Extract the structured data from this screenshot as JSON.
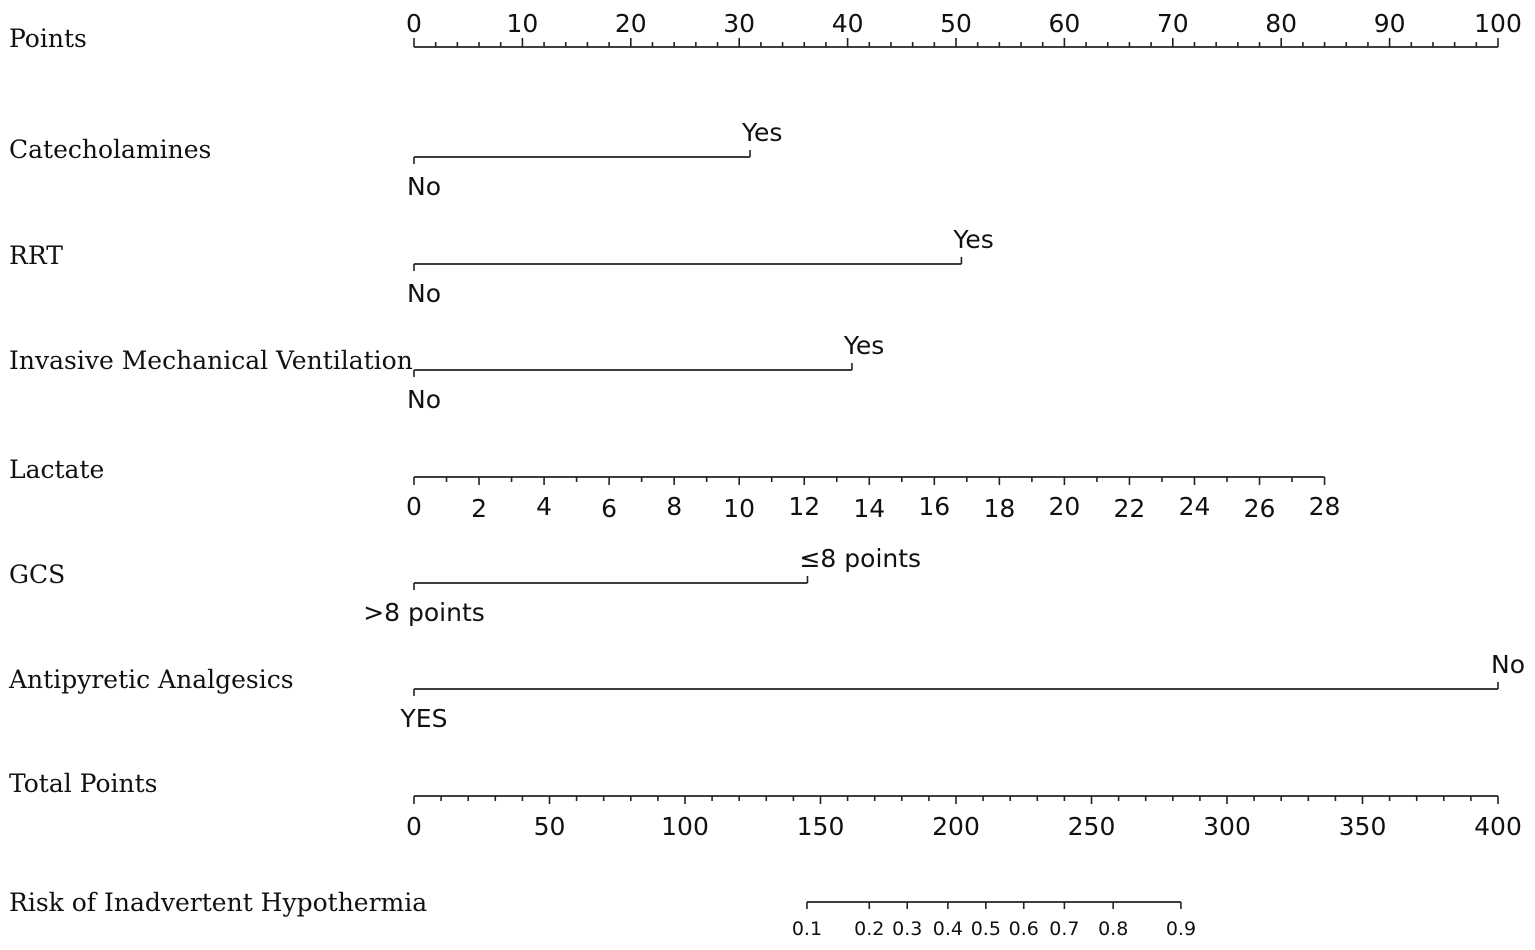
{
  "chart_data": {
    "type": "nomogram",
    "rows": [
      {
        "label": "Points",
        "kind": "scale",
        "min": 0,
        "max": 100,
        "major_ticks": [
          0,
          10,
          20,
          30,
          40,
          50,
          60,
          70,
          80,
          90,
          100
        ],
        "minor_step": 2,
        "tick_labels": [
          "0",
          "10",
          "20",
          "30",
          "40",
          "50",
          "60",
          "70",
          "80",
          "90",
          "100"
        ]
      },
      {
        "label": "Catecholamines",
        "kind": "categorical",
        "levels": [
          {
            "label": "No",
            "points": 0
          },
          {
            "label": "Yes",
            "points": 31
          }
        ]
      },
      {
        "label": "RRT",
        "kind": "categorical",
        "levels": [
          {
            "label": "No",
            "points": 0
          },
          {
            "label": "Yes",
            "points": 50.5
          }
        ]
      },
      {
        "label": "Invasive Mechanical Ventilation",
        "kind": "categorical",
        "levels": [
          {
            "label": "No",
            "points": 0
          },
          {
            "label": "Yes",
            "points": 40.4
          }
        ]
      },
      {
        "label": "Lactate",
        "kind": "continuous",
        "values": [
          0,
          2,
          4,
          6,
          8,
          10,
          12,
          14,
          16,
          18,
          20,
          22,
          24,
          26,
          28
        ],
        "tick_labels": [
          "0",
          "2",
          "4",
          "6",
          "8",
          "10",
          "12",
          "14",
          "16",
          "18",
          "20",
          "22",
          "24",
          "26",
          "28"
        ],
        "points_at_max": 84
      },
      {
        "label": "GCS",
        "kind": "categorical",
        "levels": [
          {
            "label": ">8 points",
            "points": 0
          },
          {
            "label": "≤8 points",
            "points": 36.3
          }
        ]
      },
      {
        "label": "Antipyretic Analgesics",
        "kind": "categorical",
        "levels": [
          {
            "label": "YES",
            "points": 0
          },
          {
            "label": "No",
            "points": 100
          }
        ]
      },
      {
        "label": "Total Points",
        "kind": "scale",
        "min": 0,
        "max": 400,
        "major_ticks": [
          0,
          50,
          100,
          150,
          200,
          250,
          300,
          350,
          400
        ],
        "minor_step": 10,
        "tick_labels": [
          "0",
          "50",
          "100",
          "150",
          "200",
          "250",
          "300",
          "350",
          "400"
        ]
      },
      {
        "label": "Risk of Inadvertent Hypothermia",
        "kind": "probability",
        "values": [
          0.1,
          0.2,
          0.3,
          0.4,
          0.5,
          0.6,
          0.7,
          0.8,
          0.9
        ],
        "tick_labels": [
          "0.1",
          "0.2",
          "0.3",
          "0.4",
          "0.5",
          "0.6",
          "0.7",
          "0.8",
          "0.9"
        ],
        "total_points_at_values": [
          145,
          168,
          182,
          197,
          211,
          225,
          240,
          258,
          283
        ]
      }
    ]
  }
}
